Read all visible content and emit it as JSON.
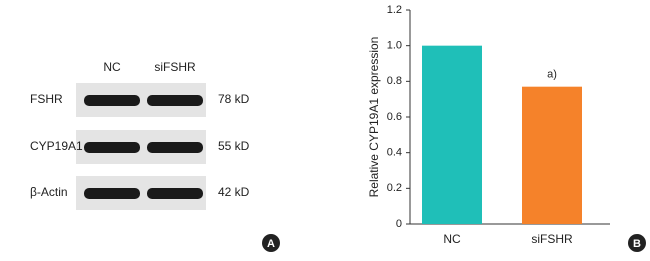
{
  "chart_data": {
    "type": "bar",
    "y_label": "Relative CYP19A1 expression",
    "categories": [
      "NC",
      "siFSHR"
    ],
    "values": [
      1.0,
      0.77
    ],
    "colors": [
      "#1fbfb8",
      "#f5822a"
    ],
    "ylim": [
      0,
      1.2
    ],
    "yticks": [
      0,
      0.2,
      0.4,
      0.6,
      {
        "value": 1,
        "label": "1.0"
      },
      0.8,
      1.2
    ],
    "annotation": "a)"
  },
  "blot": {
    "columns": [
      "NC",
      "siFSHR"
    ],
    "rows": [
      {
        "name": "FSHR",
        "size": "78 kD"
      },
      {
        "name": "CYP19A1",
        "size": "55 kD"
      },
      {
        "name": "β-Actin",
        "size": "42 kD"
      }
    ]
  },
  "panels": [
    "A",
    "B"
  ]
}
